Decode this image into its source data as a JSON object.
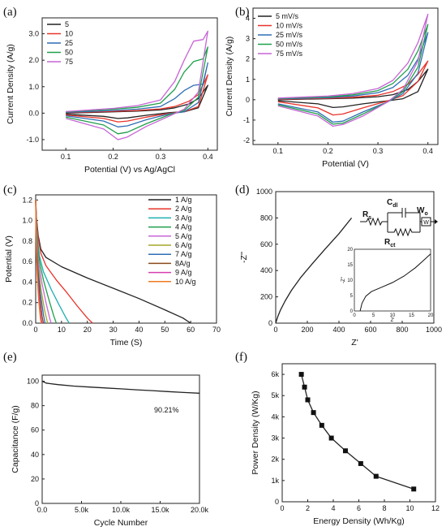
{
  "figure": {
    "panels": [
      "(a)",
      "(b)",
      "(c)",
      "(d)",
      "(e)",
      "(f)"
    ]
  },
  "colors": {
    "black": "#222222",
    "red": "#e8332a",
    "blue": "#2f6db5",
    "green": "#1f9f4a",
    "purple": "#c765d6",
    "teal": "#20b0b0",
    "orange": "#f07a1e",
    "magenta": "#d43fb0",
    "olive": "#a6a62a",
    "brown": "#8b4a1c"
  },
  "chart_data": [
    {
      "panel": "(a)",
      "type": "line",
      "title": "",
      "xlabel": "Potential (V) vs Ag/AgCl",
      "ylabel": "Current Density (A/g)",
      "xlim": [
        0.05,
        0.42
      ],
      "ylim": [
        -1.4,
        3.6
      ],
      "xticks": [
        0.1,
        0.2,
        0.3,
        0.4
      ],
      "xtick_labels": [
        "0.1",
        "0.2",
        "0.3",
        "0.4"
      ],
      "yticks": [
        -1.0,
        0.0,
        1.0,
        2.0,
        3.0
      ],
      "ytick_labels": [
        "-1.0",
        "0.0",
        "1.0",
        "2.0",
        "3.0"
      ],
      "legend_position": "top-left",
      "series": [
        {
          "name": "5",
          "color": "black",
          "x": [
            0.1,
            0.2,
            0.25,
            0.3,
            0.33,
            0.36,
            0.38,
            0.4,
            0.4,
            0.38,
            0.35,
            0.32,
            0.27,
            0.23,
            0.21,
            0.18,
            0.1
          ],
          "y": [
            0.0,
            0.05,
            0.08,
            0.12,
            0.2,
            0.35,
            0.55,
            1.05,
            1.05,
            0.2,
            0.05,
            0.02,
            -0.08,
            -0.18,
            -0.2,
            -0.12,
            -0.04
          ]
        },
        {
          "name": "10",
          "color": "red",
          "x": [
            0.1,
            0.2,
            0.25,
            0.3,
            0.33,
            0.36,
            0.38,
            0.4,
            0.4,
            0.38,
            0.35,
            0.32,
            0.27,
            0.23,
            0.21,
            0.18,
            0.1
          ],
          "y": [
            0.02,
            0.07,
            0.1,
            0.16,
            0.25,
            0.45,
            0.7,
            1.45,
            1.45,
            0.25,
            0.05,
            0.0,
            -0.15,
            -0.3,
            -0.33,
            -0.2,
            -0.07
          ]
        },
        {
          "name": "25",
          "color": "blue",
          "x": [
            0.1,
            0.2,
            0.25,
            0.3,
            0.33,
            0.35,
            0.37,
            0.39,
            0.4,
            0.4,
            0.38,
            0.35,
            0.32,
            0.27,
            0.23,
            0.21,
            0.18,
            0.1
          ],
          "y": [
            0.03,
            0.1,
            0.15,
            0.25,
            0.55,
            0.85,
            1.05,
            1.1,
            1.9,
            1.9,
            0.4,
            0.05,
            -0.02,
            -0.25,
            -0.48,
            -0.52,
            -0.3,
            -0.1
          ]
        },
        {
          "name": "50",
          "color": "green",
          "x": [
            0.1,
            0.2,
            0.25,
            0.3,
            0.33,
            0.35,
            0.37,
            0.39,
            0.4,
            0.4,
            0.38,
            0.35,
            0.32,
            0.27,
            0.23,
            0.21,
            0.18,
            0.1
          ],
          "y": [
            0.05,
            0.15,
            0.22,
            0.38,
            0.9,
            1.55,
            1.95,
            2.05,
            2.5,
            2.5,
            0.6,
            0.1,
            -0.05,
            -0.4,
            -0.72,
            -0.78,
            -0.45,
            -0.15
          ]
        },
        {
          "name": "75",
          "color": "purple",
          "x": [
            0.1,
            0.2,
            0.25,
            0.3,
            0.33,
            0.35,
            0.37,
            0.39,
            0.4,
            0.4,
            0.38,
            0.35,
            0.32,
            0.27,
            0.23,
            0.21,
            0.18,
            0.1
          ],
          "y": [
            0.06,
            0.18,
            0.28,
            0.5,
            1.2,
            2.0,
            2.72,
            2.78,
            3.1,
            3.1,
            0.8,
            0.15,
            -0.1,
            -0.5,
            -0.9,
            -1.0,
            -0.6,
            -0.2
          ]
        }
      ]
    },
    {
      "panel": "(b)",
      "type": "line",
      "title": "",
      "xlabel": "Potential (V)",
      "ylabel": "Current Density (A/g)",
      "xlim": [
        0.05,
        0.42
      ],
      "ylim": [
        -2.2,
        4.5
      ],
      "xticks": [
        0.1,
        0.2,
        0.3,
        0.4
      ],
      "xtick_labels": [
        "0.1",
        "0.2",
        "0.3",
        "0.4"
      ],
      "yticks": [
        -2,
        -1,
        0,
        1,
        2,
        3,
        4
      ],
      "ytick_labels": [
        "-2",
        "-1",
        "0",
        "1",
        "2",
        "3",
        "4"
      ],
      "legend_position": "top-left",
      "series": [
        {
          "name": "5 mV/s",
          "color": "black",
          "x": [
            0.1,
            0.2,
            0.25,
            0.3,
            0.33,
            0.36,
            0.38,
            0.4,
            0.4,
            0.38,
            0.35,
            0.32,
            0.27,
            0.23,
            0.21,
            0.18,
            0.1
          ],
          "y": [
            0.0,
            0.05,
            0.08,
            0.15,
            0.25,
            0.5,
            0.9,
            1.5,
            1.5,
            0.4,
            0.05,
            -0.05,
            -0.2,
            -0.35,
            -0.38,
            -0.2,
            -0.05
          ]
        },
        {
          "name": "10 mV/s",
          "color": "red",
          "x": [
            0.1,
            0.2,
            0.25,
            0.3,
            0.33,
            0.36,
            0.38,
            0.4,
            0.4,
            0.38,
            0.35,
            0.32,
            0.27,
            0.23,
            0.21,
            0.18,
            0.1
          ],
          "y": [
            0.02,
            0.07,
            0.12,
            0.22,
            0.4,
            0.75,
            1.25,
            1.9,
            1.9,
            0.9,
            0.2,
            -0.05,
            -0.4,
            -0.7,
            -0.75,
            -0.4,
            -0.1
          ]
        },
        {
          "name": "25 mV/s",
          "color": "blue",
          "x": [
            0.1,
            0.2,
            0.25,
            0.3,
            0.33,
            0.36,
            0.38,
            0.4,
            0.4,
            0.38,
            0.35,
            0.32,
            0.27,
            0.23,
            0.21,
            0.18,
            0.1
          ],
          "y": [
            0.04,
            0.1,
            0.18,
            0.35,
            0.6,
            1.2,
            2.0,
            3.3,
            3.3,
            1.3,
            0.3,
            -0.1,
            -0.6,
            -1.05,
            -1.1,
            -0.6,
            -0.2
          ]
        },
        {
          "name": "50 mV/s",
          "color": "green",
          "x": [
            0.1,
            0.2,
            0.25,
            0.3,
            0.33,
            0.36,
            0.38,
            0.4,
            0.4,
            0.38,
            0.35,
            0.32,
            0.27,
            0.23,
            0.21,
            0.18,
            0.1
          ],
          "y": [
            0.06,
            0.14,
            0.24,
            0.45,
            0.8,
            1.5,
            2.4,
            3.7,
            3.7,
            1.6,
            0.4,
            -0.1,
            -0.7,
            -1.15,
            -1.2,
            -0.7,
            -0.25
          ]
        },
        {
          "name": "75 mV/s",
          "color": "purple",
          "x": [
            0.1,
            0.2,
            0.25,
            0.3,
            0.33,
            0.36,
            0.38,
            0.4,
            0.4,
            0.38,
            0.35,
            0.32,
            0.27,
            0.23,
            0.21,
            0.18,
            0.1
          ],
          "y": [
            0.08,
            0.18,
            0.3,
            0.55,
            0.95,
            1.8,
            2.8,
            4.2,
            4.2,
            1.9,
            0.5,
            -0.1,
            -0.8,
            -1.22,
            -1.3,
            -0.8,
            -0.3
          ]
        }
      ]
    },
    {
      "panel": "(c)",
      "type": "line",
      "title": "",
      "xlabel": "Time (S)",
      "ylabel": "Potential (V)",
      "xlim": [
        0,
        70
      ],
      "ylim": [
        0,
        1.25
      ],
      "xticks": [
        0,
        10,
        20,
        30,
        40,
        50,
        60,
        70
      ],
      "xtick_labels": [
        "0",
        "10",
        "20",
        "30",
        "40",
        "50",
        "60",
        "70"
      ],
      "yticks": [
        0.0,
        0.2,
        0.4,
        0.6,
        0.8,
        1.0,
        1.2
      ],
      "ytick_labels": [
        "0.0",
        "0.2",
        "0.4",
        "0.6",
        "0.8",
        "1.0",
        "1.2"
      ],
      "legend_position": "top-right",
      "series": [
        {
          "name": "1 A/g",
          "color": "black",
          "x": [
            0,
            0.3,
            1,
            2,
            4,
            10,
            20,
            30,
            40,
            50,
            57,
            60
          ],
          "y": [
            1.2,
            1.02,
            0.85,
            0.72,
            0.64,
            0.55,
            0.44,
            0.34,
            0.24,
            0.13,
            0.05,
            0.0
          ]
        },
        {
          "name": "2 A/g",
          "color": "red",
          "x": [
            0,
            0.3,
            1,
            2,
            4,
            8,
            12,
            16,
            20,
            22
          ],
          "y": [
            1.2,
            1.0,
            0.82,
            0.68,
            0.56,
            0.42,
            0.3,
            0.17,
            0.05,
            0.0
          ]
        },
        {
          "name": "3 A/g",
          "color": "teal",
          "x": [
            0,
            0.2,
            0.8,
            1.5,
            3,
            6,
            9,
            12,
            13
          ],
          "y": [
            1.2,
            1.0,
            0.8,
            0.65,
            0.5,
            0.33,
            0.18,
            0.04,
            0.0
          ]
        },
        {
          "name": "4 A/g",
          "color": "green",
          "x": [
            0,
            0.2,
            0.7,
            1.5,
            3,
            5,
            7,
            8
          ],
          "y": [
            1.2,
            1.0,
            0.78,
            0.6,
            0.42,
            0.24,
            0.07,
            0.0
          ]
        },
        {
          "name": "5 A/g",
          "color": "purple",
          "x": [
            0,
            0.2,
            0.6,
            1.2,
            2.5,
            4,
            5.5,
            6
          ],
          "y": [
            1.2,
            0.98,
            0.76,
            0.58,
            0.38,
            0.2,
            0.04,
            0.0
          ]
        },
        {
          "name": "6 A/g",
          "color": "olive",
          "x": [
            0,
            0.2,
            0.5,
            1,
            2,
            3.5,
            4.6
          ],
          "y": [
            1.2,
            0.98,
            0.75,
            0.56,
            0.34,
            0.12,
            0.0
          ]
        },
        {
          "name": "7 A/g",
          "color": "blue",
          "x": [
            0,
            0.15,
            0.4,
            0.9,
            1.8,
            3.0,
            3.6
          ],
          "y": [
            1.2,
            0.97,
            0.74,
            0.52,
            0.3,
            0.08,
            0.0
          ]
        },
        {
          "name": "8A/g",
          "color": "brown",
          "x": [
            0,
            0.12,
            0.35,
            0.8,
            1.5,
            2.5,
            3.0
          ],
          "y": [
            1.2,
            0.96,
            0.72,
            0.5,
            0.28,
            0.06,
            0.0
          ]
        },
        {
          "name": "9 A/g",
          "color": "magenta",
          "x": [
            0,
            0.1,
            0.3,
            0.7,
            1.3,
            2.1,
            2.5
          ],
          "y": [
            1.2,
            0.95,
            0.7,
            0.48,
            0.26,
            0.05,
            0.0
          ]
        },
        {
          "name": "10 A/g",
          "color": "orange",
          "x": [
            0,
            0.1,
            0.25,
            0.6,
            1.1,
            1.8,
            2.1
          ],
          "y": [
            1.2,
            0.94,
            0.7,
            0.46,
            0.24,
            0.05,
            0.0
          ]
        }
      ]
    },
    {
      "panel": "(d)",
      "type": "line",
      "title": "",
      "xlabel": "Z'",
      "ylabel": "-Z''",
      "xlim": [
        0,
        1000
      ],
      "ylim": [
        0,
        1000
      ],
      "xticks": [
        0,
        200,
        400,
        600,
        800,
        1000
      ],
      "xtick_labels": [
        "0",
        "200",
        "400",
        "600",
        "800",
        "1000"
      ],
      "yticks": [
        0,
        200,
        400,
        600,
        800,
        1000
      ],
      "ytick_labels": [
        "0",
        "200",
        "400",
        "600",
        "800",
        "1000"
      ],
      "series": [
        {
          "name": "",
          "color": "black",
          "x": [
            0,
            5,
            15,
            30,
            60,
            100,
            160,
            230,
            310,
            400,
            480
          ],
          "y": [
            0,
            20,
            55,
            100,
            170,
            250,
            350,
            450,
            560,
            680,
            800
          ]
        }
      ],
      "circuit_labels": {
        "rs": "Rs",
        "cdl": "Cdl",
        "rct": "Rct",
        "wo": "Wo",
        "w_box": "W"
      },
      "inset": {
        "xlabel": "Z'",
        "ylabel": "-Z''",
        "xlim": [
          0,
          20
        ],
        "ylim": [
          0,
          20
        ],
        "xticks": [
          0,
          5,
          10,
          15,
          20
        ],
        "xtick_labels": [
          "0",
          "5",
          "10",
          "15",
          "20"
        ],
        "yticks": [
          0,
          5,
          10,
          15,
          20
        ],
        "ytick_labels": [
          "0",
          "5",
          "10",
          "15",
          "20"
        ],
        "series": [
          {
            "name": "",
            "color": "black",
            "x": [
              1.5,
              2.0,
              3.0,
              4.5,
              7,
              10,
              13,
              16,
              18,
              20
            ],
            "y": [
              0,
              2.5,
              4.8,
              6.3,
              7.6,
              9.2,
              11.3,
              14.0,
              16.2,
              18.5
            ]
          }
        ]
      }
    },
    {
      "panel": "(e)",
      "type": "line",
      "title": "",
      "xlabel": "Cycle Number",
      "ylabel": "Capacitance (F/g)",
      "xlim": [
        0,
        20000
      ],
      "ylim": [
        0,
        105
      ],
      "xticks": [
        0,
        5000,
        10000,
        15000,
        20000
      ],
      "xtick_labels": [
        "0.0",
        "5.0k",
        "10.0k",
        "15.0k",
        "20.0k"
      ],
      "yticks": [
        0,
        20,
        40,
        60,
        80,
        100
      ],
      "ytick_labels": [
        "0",
        "20",
        "40",
        "60",
        "80",
        "100"
      ],
      "annotation": "90.21%",
      "series": [
        {
          "name": "",
          "color": "black",
          "x": [
            0,
            500,
            1000,
            2000,
            4000,
            6000,
            8000,
            10000,
            12000,
            14000,
            16000,
            18000,
            20000
          ],
          "y": [
            100,
            98.5,
            98.0,
            97.2,
            96.0,
            95.2,
            94.5,
            93.8,
            93.0,
            92.3,
            91.5,
            90.8,
            90.2
          ]
        }
      ]
    },
    {
      "panel": "(f)",
      "type": "line",
      "title": "",
      "xlabel": "Energy Density (Wh/Kg)",
      "ylabel": "Power Density (W/Kg)",
      "xlim": [
        0,
        12
      ],
      "ylim": [
        0,
        6500
      ],
      "xticks": [
        0,
        2,
        4,
        6,
        8,
        10,
        12
      ],
      "xtick_labels": [
        "0",
        "2",
        "4",
        "6",
        "8",
        "10",
        "12"
      ],
      "yticks": [
        0,
        1000,
        2000,
        3000,
        4000,
        5000,
        6000
      ],
      "ytick_labels": [
        "0",
        "1k",
        "2k",
        "3k",
        "4k",
        "5k",
        "6k"
      ],
      "series": [
        {
          "name": "",
          "color": "black",
          "x": [
            1.5,
            1.75,
            2.0,
            2.45,
            3.1,
            3.85,
            4.95,
            6.15,
            7.35,
            10.3
          ],
          "y": [
            6000,
            5400,
            4800,
            4200,
            3600,
            3000,
            2400,
            1800,
            1200,
            600
          ]
        }
      ]
    }
  ]
}
